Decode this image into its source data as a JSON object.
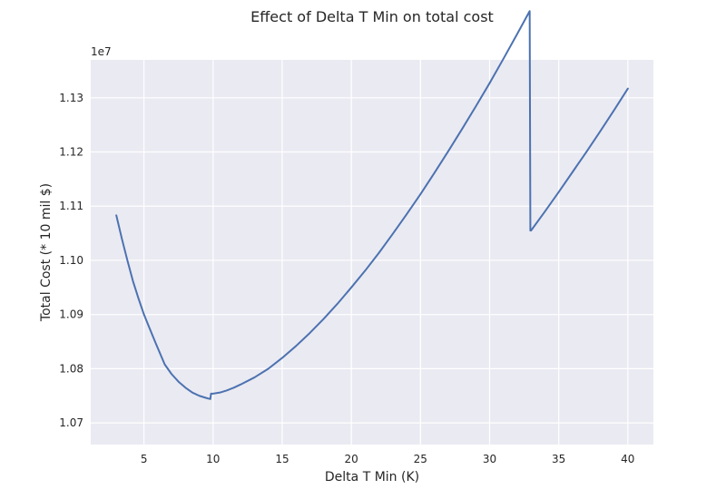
{
  "chart_data": {
    "type": "line",
    "title": "Effect of Delta T Min on total cost",
    "xlabel": "Delta T Min (K)",
    "ylabel": "Total Cost (* 10 mil $)",
    "y_offset_label": "1e7",
    "xlim": [
      1.15,
      41.85
    ],
    "ylim": [
      10.66,
      11.37
    ],
    "x_ticks": [
      5,
      10,
      15,
      20,
      25,
      30,
      35,
      40
    ],
    "x_tick_labels": [
      "5",
      "10",
      "15",
      "20",
      "25",
      "30",
      "35",
      "40"
    ],
    "y_ticks": [
      10.7,
      10.8,
      10.9,
      11.0,
      11.1,
      11.2,
      11.3
    ],
    "y_tick_labels": [
      "1.07",
      "1.08",
      "1.09",
      "1.10",
      "1.11",
      "1.12",
      "1.13"
    ],
    "grid": true,
    "background_color": "#EAEAF2",
    "grid_color": "#FFFFFF",
    "line_color": "#4C72B0",
    "series": [
      {
        "name": "",
        "x": [
          3.0,
          3.4,
          3.8,
          4.2,
          4.6,
          5.0,
          5.4,
          5.8,
          6.5,
          7.0,
          7.5,
          8.0,
          8.5,
          9.0,
          9.5,
          9.8,
          9.85,
          10.0,
          10.5,
          11.0,
          11.5,
          12.0,
          13.0,
          14.0,
          15.0,
          16.0,
          17.0,
          18.0,
          19.0,
          20.0,
          21.0,
          22.0,
          23.0,
          24.0,
          25.0,
          26.0,
          27.0,
          28.0,
          29.0,
          30.0,
          31.0,
          32.0,
          32.9,
          32.95,
          33.0,
          34.0,
          35.0,
          36.0,
          37.0,
          38.0,
          39.0,
          40.0
        ],
        "y": [
          11.083,
          11.04,
          11.0,
          10.962,
          10.93,
          10.9,
          10.875,
          10.85,
          10.808,
          10.79,
          10.776,
          10.765,
          10.756,
          10.75,
          10.746,
          10.744,
          10.754,
          10.754,
          10.756,
          10.76,
          10.765,
          10.771,
          10.784,
          10.8,
          10.82,
          10.842,
          10.866,
          10.892,
          10.92,
          10.95,
          10.981,
          11.014,
          11.049,
          11.085,
          11.122,
          11.161,
          11.201,
          11.242,
          11.284,
          11.327,
          11.372,
          11.418,
          11.46,
          11.055,
          11.055,
          11.09,
          11.126,
          11.163,
          11.2,
          11.238,
          11.277,
          11.317
        ]
      }
    ]
  }
}
